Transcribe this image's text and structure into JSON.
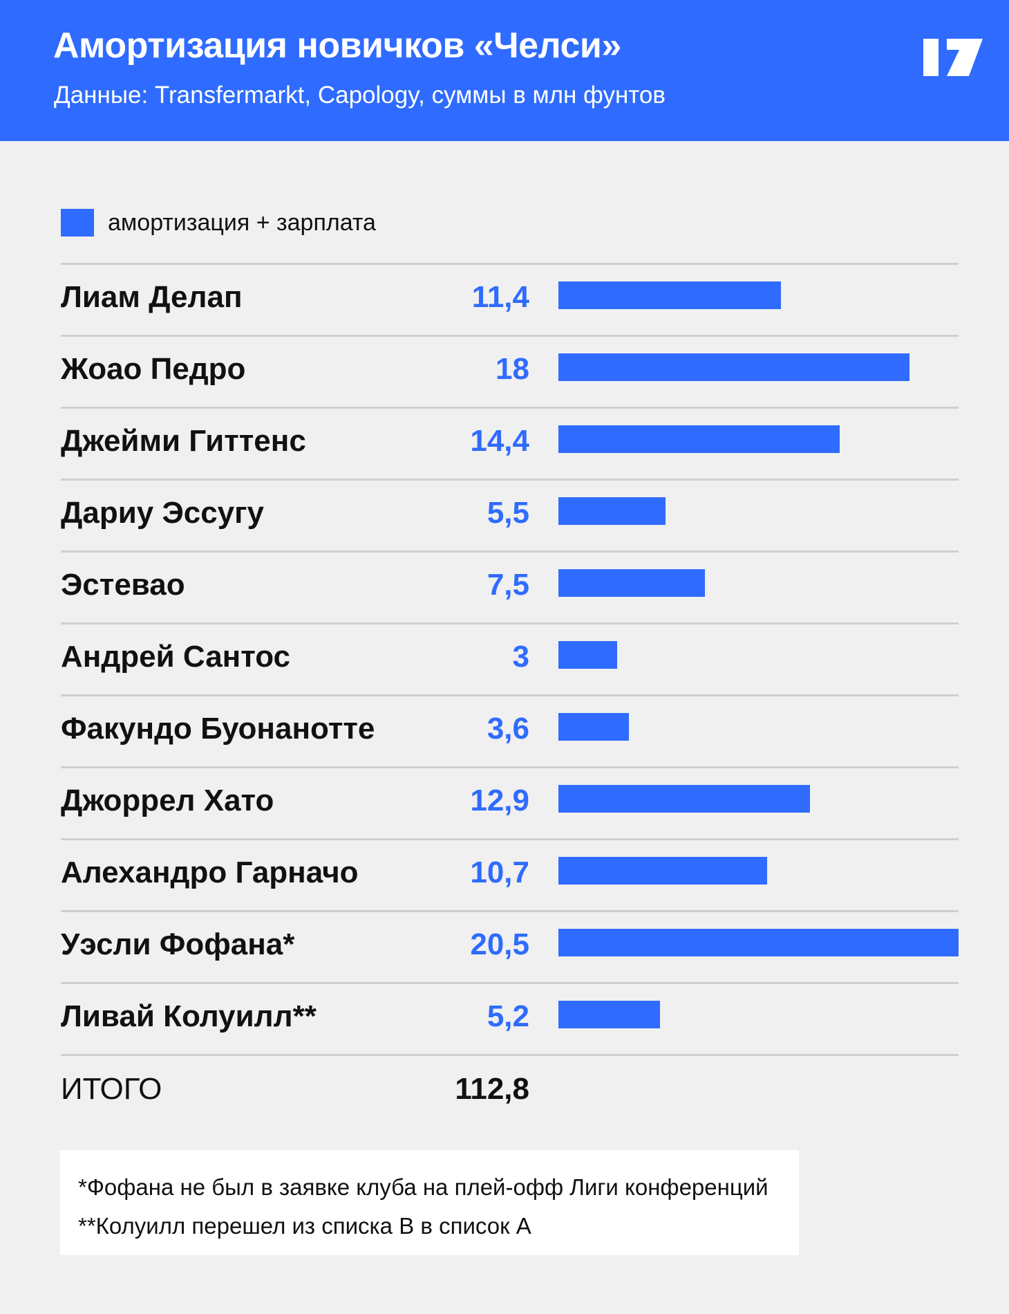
{
  "header": {
    "title": "Амортизация новичков «Челси»",
    "subtitle": "Данные: Transfermarkt, Capology, суммы в млн фунтов",
    "logo_icon": "publication-logo-icon"
  },
  "colors": {
    "header_bg": "#2f6bff",
    "bar": "#2f6bff",
    "value_text": "#2f6bff",
    "background": "#f0f0f0",
    "divider": "#cfcfcf"
  },
  "chart_data": {
    "type": "bar",
    "orientation": "horizontal",
    "categories": [
      "Лиам Делап",
      "Жоао Педро",
      "Джейми Гиттенс",
      "Дариу Эссугу",
      "Эстевао",
      "Андрей Сантос",
      "Факундо Буонанотте",
      "Джоррел Хато",
      "Алехандро Гарначо",
      "Уэсли Фофана*",
      "Ливай Колуилл**"
    ],
    "series": [
      {
        "name": "амортизация + зарплата",
        "values": [
          11.4,
          18,
          14.4,
          5.5,
          7.5,
          3,
          3.6,
          12.9,
          10.7,
          20.5,
          5.2
        ],
        "labels": [
          "11,4",
          "18",
          "14,4",
          "5,5",
          "7,5",
          "3",
          "3,6",
          "12,9",
          "10,7",
          "20,5",
          "5,2"
        ]
      }
    ],
    "xlim": [
      0,
      20.5
    ],
    "grid": false,
    "legend_position": "top-left",
    "total_label": "ИТОГО",
    "total_value": "112,8"
  },
  "notes": [
    "*Фофана не был в заявке клуба на плей-офф Лиги конференций",
    "**Колуилл перешел из списка В в список А"
  ]
}
